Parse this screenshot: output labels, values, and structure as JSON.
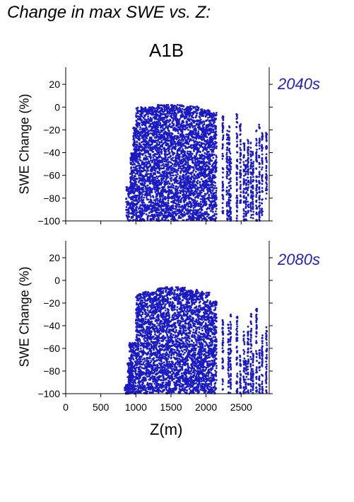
{
  "page": {
    "title": "Change in max SWE vs. Z:",
    "scenario": "A1B"
  },
  "colors": {
    "points": "#1a1ac4",
    "period_label": "#2222bb",
    "axis": "#000000"
  },
  "chart_data": [
    {
      "type": "scatter",
      "period": "2040s",
      "xlabel": "",
      "ylabel": "SWE Change (%)",
      "xlim": [
        0,
        2900
      ],
      "ylim": [
        -100,
        35
      ],
      "xticks": [
        0,
        500,
        1000,
        1500,
        2000,
        2500
      ],
      "yticks": [
        20,
        0,
        -20,
        -40,
        -60,
        -80,
        -100
      ],
      "xtick_labels": [
        "0",
        "500",
        "1000",
        "1500",
        "2000",
        "2500"
      ],
      "ytick_labels": [
        "20",
        "0",
        "−20",
        "−40",
        "−60",
        "−80",
        "−100"
      ],
      "series": [
        {
          "bands": [
            {
              "x0": 860,
              "x1": 1000,
              "top": -70,
              "bottom": -100
            },
            {
              "x0": 920,
              "x1": 1000,
              "top": -40,
              "bottom": -70
            },
            {
              "x0": 960,
              "x1": 1000,
              "top": -18,
              "bottom": -40
            },
            {
              "x0": 1000,
              "x1": 1100,
              "top": 0,
              "bottom": -100
            },
            {
              "x0": 1100,
              "x1": 1300,
              "top": 0,
              "bottom": -100
            },
            {
              "x0": 1300,
              "x1": 1700,
              "top": 2,
              "bottom": -100
            },
            {
              "x0": 1700,
              "x1": 1900,
              "top": 1,
              "bottom": -100
            },
            {
              "x0": 1900,
              "x1": 2050,
              "top": -2,
              "bottom": -100
            },
            {
              "x0": 2050,
              "x1": 2150,
              "top": -5,
              "bottom": -100
            }
          ],
          "columns": [
            {
              "x": 2240,
              "top": -8,
              "bottom": -95
            },
            {
              "x": 2300,
              "top": -20,
              "bottom": -100
            },
            {
              "x": 2330,
              "top": -15,
              "bottom": -100
            },
            {
              "x": 2350,
              "top": -38,
              "bottom": -100
            },
            {
              "x": 2440,
              "top": -5,
              "bottom": -100
            },
            {
              "x": 2490,
              "top": -10,
              "bottom": -90
            },
            {
              "x": 2540,
              "top": -25,
              "bottom": -100
            },
            {
              "x": 2570,
              "top": -45,
              "bottom": -100
            },
            {
              "x": 2600,
              "top": -25,
              "bottom": -100
            },
            {
              "x": 2640,
              "top": -30,
              "bottom": -100
            },
            {
              "x": 2670,
              "top": -38,
              "bottom": -100
            },
            {
              "x": 2720,
              "top": -20,
              "bottom": -100
            },
            {
              "x": 2760,
              "top": -15,
              "bottom": -100
            },
            {
              "x": 2800,
              "top": -20,
              "bottom": -95
            },
            {
              "x": 2860,
              "top": -20,
              "bottom": -85
            }
          ]
        }
      ]
    },
    {
      "type": "scatter",
      "period": "2080s",
      "xlabel": "Z(m)",
      "ylabel": "SWE Change (%)",
      "xlim": [
        0,
        2900
      ],
      "ylim": [
        -100,
        35
      ],
      "xticks": [
        0,
        500,
        1000,
        1500,
        2000,
        2500
      ],
      "yticks": [
        20,
        0,
        -20,
        -40,
        -60,
        -80,
        -100
      ],
      "xtick_labels": [
        "0",
        "500",
        "1000",
        "1500",
        "2000",
        "2500"
      ],
      "ytick_labels": [
        "20",
        "0",
        "−20",
        "−40",
        "−60",
        "−80",
        "−100"
      ],
      "series": [
        {
          "bands": [
            {
              "x0": 840,
              "x1": 900,
              "top": -92,
              "bottom": -100
            },
            {
              "x0": 880,
              "x1": 960,
              "top": -72,
              "bottom": -100
            },
            {
              "x0": 900,
              "x1": 1000,
              "top": -55,
              "bottom": -100
            },
            {
              "x0": 1000,
              "x1": 1100,
              "top": -12,
              "bottom": -100
            },
            {
              "x0": 1100,
              "x1": 1300,
              "top": -10,
              "bottom": -100
            },
            {
              "x0": 1300,
              "x1": 1700,
              "top": -6,
              "bottom": -100
            },
            {
              "x0": 1700,
              "x1": 1900,
              "top": -8,
              "bottom": -100
            },
            {
              "x0": 1900,
              "x1": 2050,
              "top": -10,
              "bottom": -100
            },
            {
              "x0": 2050,
              "x1": 2150,
              "top": -18,
              "bottom": -100
            }
          ],
          "columns": [
            {
              "x": 2240,
              "top": -35,
              "bottom": -100
            },
            {
              "x": 2320,
              "top": -38,
              "bottom": -100
            },
            {
              "x": 2350,
              "top": -30,
              "bottom": -100
            },
            {
              "x": 2440,
              "top": -32,
              "bottom": -100
            },
            {
              "x": 2490,
              "top": -65,
              "bottom": -100
            },
            {
              "x": 2540,
              "top": -45,
              "bottom": -100
            },
            {
              "x": 2570,
              "top": -70,
              "bottom": -100
            },
            {
              "x": 2600,
              "top": -40,
              "bottom": -100
            },
            {
              "x": 2640,
              "top": -28,
              "bottom": -100
            },
            {
              "x": 2670,
              "top": -62,
              "bottom": -100
            },
            {
              "x": 2720,
              "top": -25,
              "bottom": -100
            },
            {
              "x": 2760,
              "top": -60,
              "bottom": -100
            },
            {
              "x": 2800,
              "top": -48,
              "bottom": -100
            },
            {
              "x": 2860,
              "top": -40,
              "bottom": -100
            }
          ]
        }
      ]
    }
  ]
}
